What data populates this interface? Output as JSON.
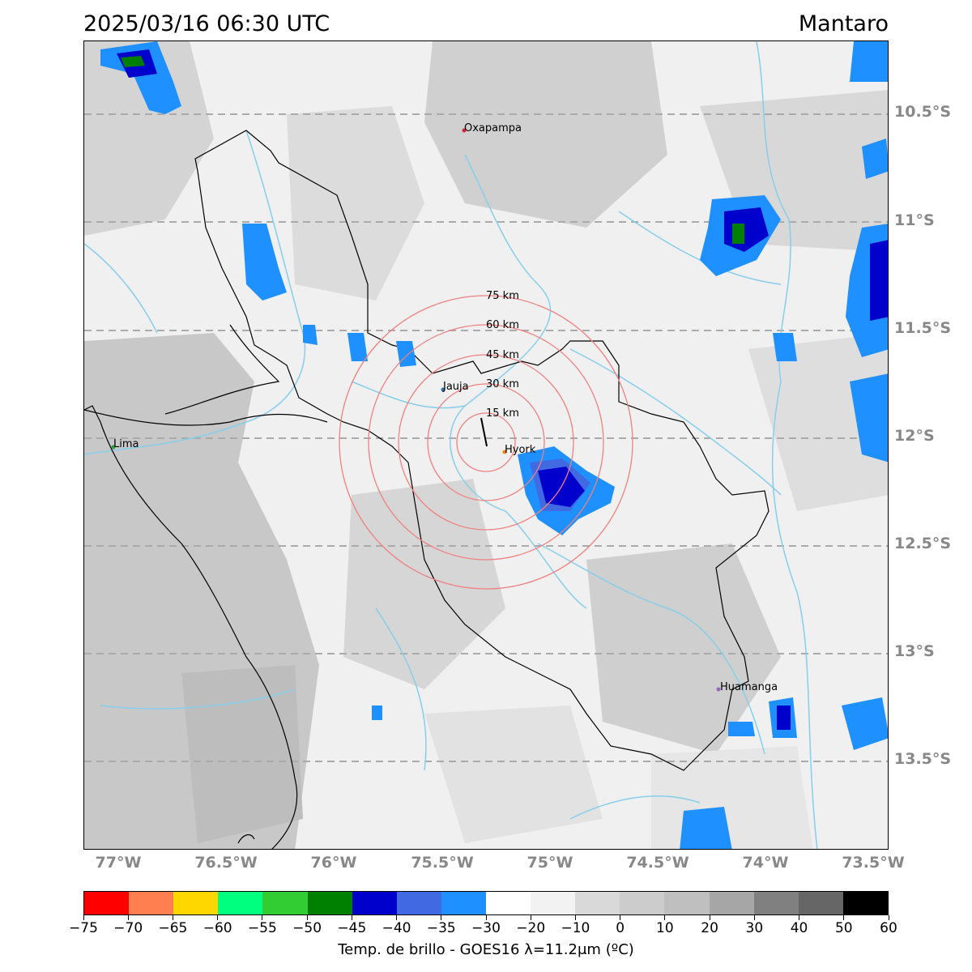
{
  "header": {
    "datetime": "2025/03/16 06:30 UTC",
    "region": "Mantaro"
  },
  "map": {
    "lat_labels": [
      "10.5°S",
      "11°S",
      "11.5°S",
      "12°S",
      "12.5°S",
      "13°S",
      "13.5°S"
    ],
    "lon_labels": [
      "77°W",
      "76.5°W",
      "76°W",
      "75.5°W",
      "75°W",
      "74.5°W",
      "74°W",
      "73.5°W"
    ],
    "cities": [
      {
        "name": "Oxapampa",
        "color": "#d62728"
      },
      {
        "name": "Jauja",
        "color": "#1f77b4"
      },
      {
        "name": "Hyork",
        "color": "#ff7f0e"
      },
      {
        "name": "Lima",
        "color": "#2ca02c"
      },
      {
        "name": "Huamanga",
        "color": "#9467bd"
      }
    ],
    "rings": [
      "15 km",
      "30 km",
      "45 km",
      "60 km",
      "75 km"
    ],
    "ring_color": "#f08080",
    "river_color": "#87ceeb",
    "border_color": "#000000"
  },
  "colorbar": {
    "ticks": [
      "−75",
      "−70",
      "−65",
      "−60",
      "−55",
      "−50",
      "−45",
      "−40",
      "−35",
      "−30",
      "−20",
      "−10",
      "0",
      "10",
      "20",
      "30",
      "40",
      "50",
      "60"
    ],
    "colors": [
      "#ff0000",
      "#ff7f50",
      "#ffd700",
      "#00ff7f",
      "#32cd32",
      "#008000",
      "#0000cd",
      "#4169e1",
      "#1e90ff",
      "#ffffff",
      "#f2f2f2",
      "#d9d9d9",
      "#cccccc",
      "#bfbfbf",
      "#a6a6a6",
      "#808080",
      "#666666",
      "#000000"
    ],
    "label": "Temp. de brillo - GOES16 λ=11.2μm (ºC)"
  }
}
